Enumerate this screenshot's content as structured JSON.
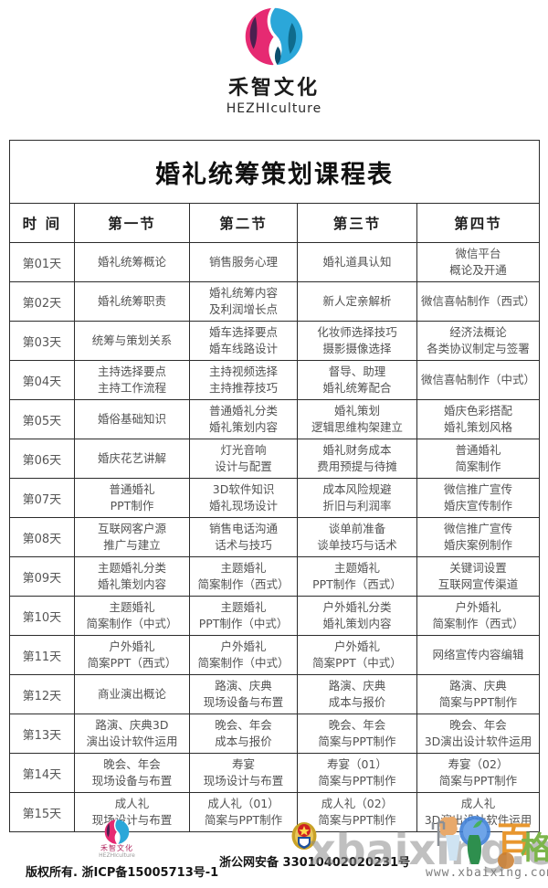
{
  "brand": {
    "name_cn": "禾智文化",
    "name_en": "HEZHIculture",
    "colors": {
      "magenta": "#e62a72",
      "dark_purple": "#4c2050",
      "blue": "#2ba7d9",
      "dark_teal": "#0f6b8c"
    }
  },
  "table": {
    "title": "婚礼统筹策划课程表",
    "columns": [
      "时  间",
      "第一节",
      "第二节",
      "第三节",
      "第四节"
    ],
    "rows": [
      {
        "day": "第01天",
        "cells": [
          [
            "婚礼统筹概论"
          ],
          [
            "销售服务心理"
          ],
          [
            "婚礼道具认知"
          ],
          [
            "微信平台",
            "概论及开通"
          ]
        ]
      },
      {
        "day": "第02天",
        "cells": [
          [
            "婚礼统筹职责"
          ],
          [
            "婚礼统筹内容",
            "及利润增长点"
          ],
          [
            "新人定亲解析"
          ],
          [
            "微信喜帖制作（西式）"
          ]
        ]
      },
      {
        "day": "第03天",
        "cells": [
          [
            "统筹与策划关系"
          ],
          [
            "婚车选择要点",
            "婚车线路设计"
          ],
          [
            "化妆师选择技巧",
            "摄影摄像选择"
          ],
          [
            "经济法概论",
            "各类协议制定与签署"
          ]
        ]
      },
      {
        "day": "第04天",
        "cells": [
          [
            "主持选择要点",
            "主持工作流程"
          ],
          [
            "主持视频选择",
            "主持推荐技巧"
          ],
          [
            "督导、助理",
            "婚礼统筹配合"
          ],
          [
            "微信喜帖制作（中式）"
          ]
        ]
      },
      {
        "day": "第05天",
        "cells": [
          [
            "婚俗基础知识"
          ],
          [
            "普通婚礼分类",
            "婚礼策划内容"
          ],
          [
            "婚礼策划",
            "逻辑思维构架建立"
          ],
          [
            "婚庆色彩搭配",
            "婚礼策划风格"
          ]
        ]
      },
      {
        "day": "第06天",
        "cells": [
          [
            "婚庆花艺讲解"
          ],
          [
            "灯光音响",
            "设计与配置"
          ],
          [
            "婚礼财务成本",
            "费用预提与待摊"
          ],
          [
            "普通婚礼",
            "简案制作"
          ]
        ]
      },
      {
        "day": "第07天",
        "cells": [
          [
            "普通婚礼",
            "PPT制作"
          ],
          [
            "3D软件知识",
            "婚礼现场设计"
          ],
          [
            "成本风险规避",
            "折旧与利润率"
          ],
          [
            "微信推广宣传",
            "婚庆宣传制作"
          ]
        ]
      },
      {
        "day": "第08天",
        "cells": [
          [
            "互联网客户源",
            "推广与建立"
          ],
          [
            "销售电话沟通",
            "话术与技巧"
          ],
          [
            "谈单前准备",
            "谈单技巧与话术"
          ],
          [
            "微信推广宣传",
            "婚庆案例制作"
          ]
        ]
      },
      {
        "day": "第09天",
        "cells": [
          [
            "主题婚礼分类",
            "婚礼策划内容"
          ],
          [
            "主题婚礼",
            "简案制作（西式）"
          ],
          [
            "主题婚礼",
            "PPT制作（西式）"
          ],
          [
            "关键词设置",
            "互联网宣传渠道"
          ]
        ]
      },
      {
        "day": "第10天",
        "cells": [
          [
            "主题婚礼",
            "简案制作（中式）"
          ],
          [
            "主题婚礼",
            "PPT制作（中式）"
          ],
          [
            "户外婚礼分类",
            "婚礼策划内容"
          ],
          [
            "户外婚礼",
            "简案制作（西式）"
          ]
        ]
      },
      {
        "day": "第11天",
        "cells": [
          [
            "户外婚礼",
            "简案PPT（西式）"
          ],
          [
            "户外婚礼",
            "简案制作（中式）"
          ],
          [
            "户外婚礼",
            "简案PPT（中式）"
          ],
          [
            "网络宣传内容编辑"
          ]
        ]
      },
      {
        "day": "第12天",
        "cells": [
          [
            "商业演出概论"
          ],
          [
            "路演、庆典",
            "现场设备与布置"
          ],
          [
            "路演、庆典",
            "成本与报价"
          ],
          [
            "路演、庆典",
            "简案与PPT制作"
          ]
        ]
      },
      {
        "day": "第13天",
        "cells": [
          [
            "路演、庆典3D",
            "演出设计软件运用"
          ],
          [
            "晚会、年会",
            "成本与报价"
          ],
          [
            "晚会、年会",
            "简案与PPT制作"
          ],
          [
            "晚会、年会",
            "3D演出设计软件运用"
          ]
        ]
      },
      {
        "day": "第14天",
        "cells": [
          [
            "晚会、年会",
            "现场设备与布置"
          ],
          [
            "寿宴",
            "现场设计与布置"
          ],
          [
            "寿宴（01）",
            "简案与PPT制作"
          ],
          [
            "寿宴（02）",
            "简案与PPT制作"
          ]
        ]
      },
      {
        "day": "第15天",
        "cells": [
          [
            "成人礼",
            "现场设计与布置"
          ],
          [
            "成人礼（01）",
            "简案与PPT制作"
          ],
          [
            "成人礼（02）",
            "简案与PPT制作"
          ],
          [
            "成人礼",
            "3D演出设计软件运用"
          ]
        ]
      }
    ]
  },
  "footer": {
    "brand_cn": "禾智文化",
    "brand_en": "HEZHIculture",
    "copyright": "版权所有. 浙ICP备15005713号-1",
    "police_label": "浙公网安备 33010402020231号"
  },
  "watermark": {
    "big_text": "xbaixing.com",
    "url_text": "www.xbaixing.com"
  }
}
